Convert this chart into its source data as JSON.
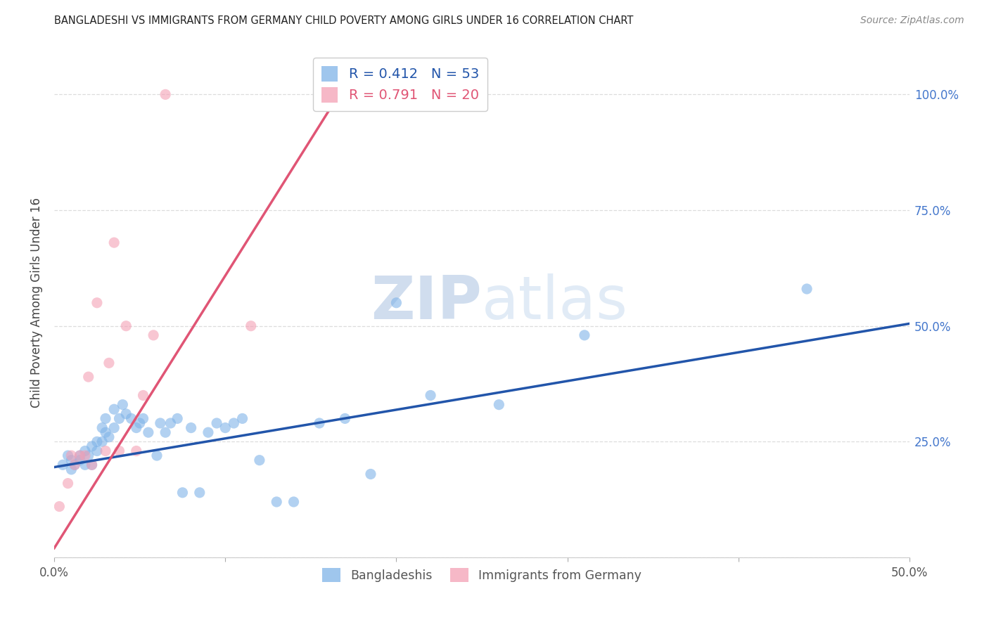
{
  "title": "BANGLADESHI VS IMMIGRANTS FROM GERMANY CHILD POVERTY AMONG GIRLS UNDER 16 CORRELATION CHART",
  "source": "Source: ZipAtlas.com",
  "ylabel_label": "Child Poverty Among Girls Under 16",
  "xlim": [
    0.0,
    0.5
  ],
  "ylim": [
    0.0,
    1.1
  ],
  "blue_color": "#7fb3e8",
  "pink_color": "#f4a0b5",
  "trendline_blue": "#2255aa",
  "trendline_pink": "#e05575",
  "r_blue": 0.412,
  "n_blue": 53,
  "r_pink": 0.791,
  "n_pink": 20,
  "watermark_zip": "ZIP",
  "watermark_atlas": "atlas",
  "legend_label_blue": "Bangladeshis",
  "legend_label_pink": "Immigrants from Germany",
  "blue_scatter_x": [
    0.005,
    0.008,
    0.01,
    0.01,
    0.012,
    0.015,
    0.015,
    0.018,
    0.018,
    0.02,
    0.022,
    0.022,
    0.025,
    0.025,
    0.028,
    0.028,
    0.03,
    0.03,
    0.032,
    0.035,
    0.035,
    0.038,
    0.04,
    0.042,
    0.045,
    0.048,
    0.05,
    0.052,
    0.055,
    0.06,
    0.062,
    0.065,
    0.068,
    0.072,
    0.075,
    0.08,
    0.085,
    0.09,
    0.095,
    0.1,
    0.105,
    0.11,
    0.12,
    0.13,
    0.14,
    0.155,
    0.17,
    0.185,
    0.2,
    0.22,
    0.26,
    0.31,
    0.44
  ],
  "blue_scatter_y": [
    0.2,
    0.22,
    0.21,
    0.19,
    0.2,
    0.22,
    0.21,
    0.2,
    0.23,
    0.22,
    0.24,
    0.2,
    0.23,
    0.25,
    0.25,
    0.28,
    0.27,
    0.3,
    0.26,
    0.28,
    0.32,
    0.3,
    0.33,
    0.31,
    0.3,
    0.28,
    0.29,
    0.3,
    0.27,
    0.22,
    0.29,
    0.27,
    0.29,
    0.3,
    0.14,
    0.28,
    0.14,
    0.27,
    0.29,
    0.28,
    0.29,
    0.3,
    0.21,
    0.12,
    0.12,
    0.29,
    0.3,
    0.18,
    0.55,
    0.35,
    0.33,
    0.48,
    0.58
  ],
  "pink_scatter_x": [
    0.003,
    0.008,
    0.01,
    0.012,
    0.015,
    0.018,
    0.02,
    0.022,
    0.025,
    0.03,
    0.032,
    0.035,
    0.038,
    0.042,
    0.048,
    0.052,
    0.058,
    0.065,
    0.115,
    0.17
  ],
  "pink_scatter_y": [
    0.11,
    0.16,
    0.22,
    0.2,
    0.22,
    0.22,
    0.39,
    0.2,
    0.55,
    0.23,
    0.42,
    0.68,
    0.23,
    0.5,
    0.23,
    0.35,
    0.48,
    1.0,
    0.5,
    1.0
  ],
  "blue_line_x": [
    0.0,
    0.5
  ],
  "blue_line_y": [
    0.195,
    0.505
  ],
  "pink_line_x": [
    0.0,
    0.175
  ],
  "pink_line_y": [
    0.02,
    1.05
  ],
  "grid_color": "#dddddd",
  "yticks": [
    0.0,
    0.25,
    0.5,
    0.75,
    1.0
  ],
  "xticks": [
    0.0,
    0.1,
    0.2,
    0.3,
    0.4,
    0.5
  ]
}
